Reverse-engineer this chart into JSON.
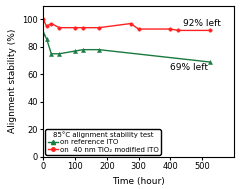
{
  "title": "",
  "xlabel": "Time (hour)",
  "ylabel": "Alignment stability (%)",
  "xlim": [
    0,
    600
  ],
  "ylim": [
    0,
    110
  ],
  "xticks": [
    0,
    100,
    200,
    300,
    400,
    500
  ],
  "yticks": [
    0,
    20,
    40,
    60,
    80,
    100
  ],
  "red_x": [
    0,
    10,
    25,
    50,
    100,
    125,
    175,
    275,
    300,
    400,
    425,
    525
  ],
  "red_y": [
    100,
    95,
    97,
    94,
    94,
    94,
    94,
    97,
    93,
    93,
    92,
    92
  ],
  "green_x": [
    0,
    10,
    25,
    50,
    100,
    125,
    175,
    525
  ],
  "green_y": [
    90,
    86,
    75,
    75,
    77,
    78,
    78,
    69
  ],
  "red_color": "#ff2020",
  "green_color": "#1a7a40",
  "annotation_92": "92% left",
  "annotation_69": "69% left",
  "ann92_x": 440,
  "ann92_y": 95,
  "ann69_x": 400,
  "ann69_y": 63,
  "legend_title": "85°C alignment stability test",
  "legend_green": "on reference ITO",
  "legend_red": "on  40 nm TiO₂ modified ITO",
  "bg_color": "#ffffff",
  "fontsize": 6.5,
  "legend_fontsize": 5.0,
  "tick_fontsize": 6.0
}
